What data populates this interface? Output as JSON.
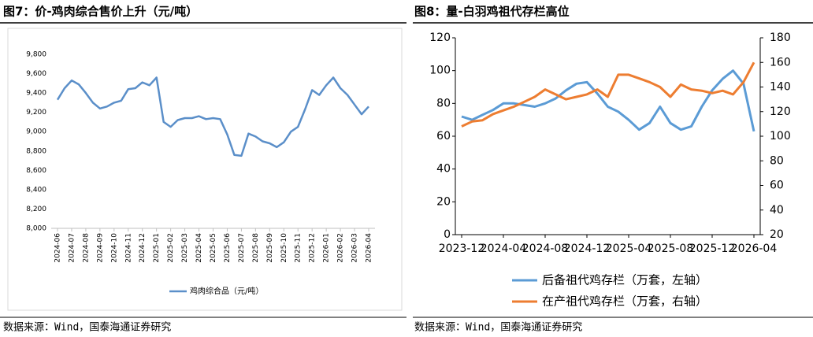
{
  "chart_data": [
    {
      "type": "line",
      "title": "图7：价-鸡肉综合售价上升（元/吨）",
      "source": "数据来源：Wind，国泰海通证券研究",
      "categories": [
        "2024-06",
        null,
        "2024-07",
        null,
        "2024-08",
        null,
        "2024-09",
        null,
        "2024-10",
        null,
        "2024-11",
        null,
        "2024-12",
        null,
        "2025-01",
        null,
        "2025-02",
        null,
        "2025-03",
        null,
        "2025-04",
        null,
        "2025-05",
        null,
        "2025-06",
        null,
        "2025-07",
        null,
        "2025-08",
        null,
        "2025-09",
        null,
        "2025-10",
        null,
        "2025-11",
        null,
        "2025-12",
        null,
        "2026-01",
        null,
        "2026-02",
        null,
        "2026-03",
        null,
        "2026-04"
      ],
      "series": [
        {
          "name": "鸡肉综合品（元/吨）",
          "color": "#5b8fc9",
          "values": [
            9330,
            9450,
            9530,
            9490,
            9400,
            9300,
            9240,
            9260,
            9300,
            9320,
            9440,
            9450,
            9510,
            9480,
            9560,
            9100,
            9050,
            9120,
            9140,
            9140,
            9160,
            9130,
            9140,
            9130,
            8970,
            8760,
            8750,
            8980,
            8950,
            8900,
            8880,
            8840,
            8890,
            9000,
            9050,
            9230,
            9430,
            9380,
            9480,
            9560,
            9450,
            9380,
            9280,
            9180,
            9260
          ]
        }
      ],
      "ylim": [
        8000,
        9800
      ],
      "yticks": [
        {
          "value": 8000,
          "label": "8,000"
        },
        {
          "value": 8200,
          "label": "8,200"
        },
        {
          "value": 8400,
          "label": "8,400"
        },
        {
          "value": 8600,
          "label": "8,600"
        },
        {
          "value": 8800,
          "label": "8,800"
        },
        {
          "value": 9000,
          "label": "9,000"
        },
        {
          "value": 9200,
          "label": "9,200"
        },
        {
          "value": 9400,
          "label": "9,400"
        },
        {
          "value": 9600,
          "label": "9,600"
        },
        {
          "value": 9800,
          "label": "9,800"
        }
      ],
      "legend": "bottom"
    },
    {
      "type": "line",
      "title": "图8：量-白羽鸡祖代存栏高位",
      "source": "数据来源：Wind，国泰海通证券研究",
      "categories": [
        "2023-12",
        null,
        null,
        null,
        "2024-04",
        null,
        null,
        null,
        "2024-08",
        null,
        null,
        null,
        "2024-12",
        null,
        null,
        null,
        "2025-04",
        null,
        null,
        null,
        "2025-08",
        null,
        null,
        null,
        "2025-12",
        null,
        null,
        null,
        "2026-04"
      ],
      "series": [
        {
          "name": "后备祖代鸡存栏（万套，左轴）",
          "color": "#5b9bd5",
          "values": [
            72,
            70,
            73,
            76,
            80,
            80,
            79,
            78,
            80,
            83,
            88,
            92,
            93,
            86,
            78,
            75,
            70,
            64,
            68,
            78,
            68,
            64,
            66,
            78,
            88,
            95,
            100,
            92,
            63
          ]
        },
        {
          "name": "在产祖代鸡存栏（万套，右轴）",
          "color": "#ed7d31",
          "axis": "y2",
          "values": [
            108,
            112,
            113,
            118,
            121,
            124,
            128,
            132,
            138,
            134,
            130,
            132,
            134,
            138,
            132,
            150,
            150,
            147,
            144,
            140,
            132,
            142,
            138,
            137,
            135,
            137,
            134,
            144,
            160
          ]
        }
      ],
      "ylim": [
        0,
        120
      ],
      "yticks": [
        0,
        20,
        40,
        60,
        80,
        100,
        120
      ],
      "y2lim": [
        20,
        180
      ],
      "y2ticks": [
        20,
        40,
        60,
        80,
        100,
        120,
        140,
        160,
        180
      ],
      "legend": "bottom"
    }
  ]
}
